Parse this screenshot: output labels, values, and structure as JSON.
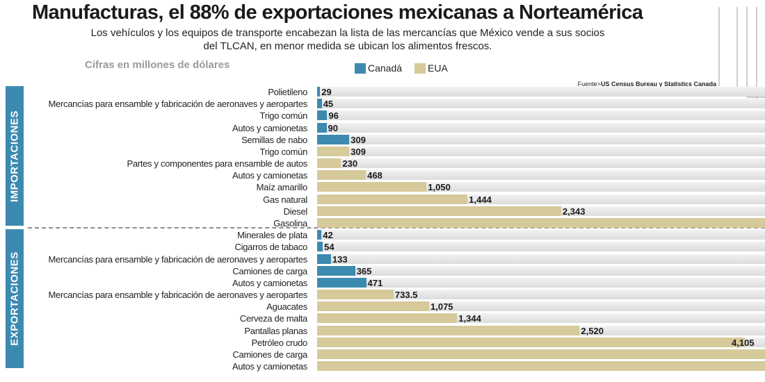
{
  "header": {
    "title": "Manufacturas, el 88% de exportaciones mexicanas a Norteamérica",
    "subtitle_line1": "Los vehículos y los equipos de transporte encabezan la lista de las mercancías que México vende a sus socios",
    "subtitle_line2": "del TLCAN, en menor medida se ubican los alimentos frescos.",
    "units": "Cifras en millones de dólares",
    "source_prefix": "Fuente>",
    "source_name": "US Census Bureau y Statistics Canada"
  },
  "colors": {
    "canada": "#3d8ab0",
    "eua": "#d6c99a",
    "track": "#e4e4e4",
    "section_tab": "#3d8ab0"
  },
  "sections": {
    "import_label": "IMPORTACIONES",
    "export_label": "EXPORTACIONES"
  },
  "chart_data": {
    "type": "bar",
    "orientation": "horizontal",
    "title": "Manufacturas, el 88% de exportaciones mexicanas a Norteamérica",
    "units": "Cifras en millones de dólares",
    "legend": [
      {
        "name": "Canadá",
        "color": "#3d8ab0"
      },
      {
        "name": "EUA",
        "color": "#d6c99a"
      }
    ],
    "legend_position": "top",
    "xlim": [
      0,
      4300
    ],
    "rows": [
      {
        "section": "import",
        "label": "Polietileno",
        "country": "Canadá",
        "value": 29,
        "value_text": "29"
      },
      {
        "section": "import",
        "label": "Mercancías para ensamble y fabricación de aeronaves y aeropartes",
        "country": "Canadá",
        "value": 45,
        "value_text": "45"
      },
      {
        "section": "import",
        "label": "Trigo común",
        "country": "Canadá",
        "value": 96,
        "value_text": "96"
      },
      {
        "section": "import",
        "label": "Autos y camionetas",
        "country": "Canadá",
        "value": 90,
        "value_text": "90"
      },
      {
        "section": "import",
        "label": "Semillas de nabo",
        "country": "Canadá",
        "value": 309,
        "value_text": "309"
      },
      {
        "section": "import",
        "label": "Trigo común",
        "country": "EUA",
        "value": 309,
        "value_text": "309"
      },
      {
        "section": "import",
        "label": "Partes y componentes para ensamble de autos",
        "country": "EUA",
        "value": 230,
        "value_text": "230"
      },
      {
        "section": "import",
        "label": "Autos y camionetas",
        "country": "EUA",
        "value": 468,
        "value_text": "468"
      },
      {
        "section": "import",
        "label": "Maíz amarillo",
        "country": "EUA",
        "value": 1050,
        "value_text": "1,050"
      },
      {
        "section": "import",
        "label": "Gas natural",
        "country": "EUA",
        "value": 1444,
        "value_text": "1,444"
      },
      {
        "section": "import",
        "label": "Diesel",
        "country": "EUA",
        "value": 2343,
        "value_text": "2,343"
      },
      {
        "section": "import",
        "label": "Gasolina",
        "country": "EUA",
        "value": 4300,
        "value_text": ""
      },
      {
        "section": "export",
        "label": "Minerales de plata",
        "country": "Canadá",
        "value": 42,
        "value_text": "42"
      },
      {
        "section": "export",
        "label": "Cigarros de tabaco",
        "country": "Canadá",
        "value": 54,
        "value_text": "54"
      },
      {
        "section": "export",
        "label": "Mercancías para ensamble y fabricación de aeronaves y aeropartes",
        "country": "Canadá",
        "value": 133,
        "value_text": "133"
      },
      {
        "section": "export",
        "label": "Camiones de carga",
        "country": "Canadá",
        "value": 365,
        "value_text": "365"
      },
      {
        "section": "export",
        "label": "Autos y camionetas",
        "country": "Canadá",
        "value": 471,
        "value_text": "471"
      },
      {
        "section": "export",
        "label": "Mercancías para ensamble y fabricación de aeronaves y aeropartes",
        "country": "EUA",
        "value": 733.5,
        "value_text": "733.5"
      },
      {
        "section": "export",
        "label": "Aguacates",
        "country": "EUA",
        "value": 1075,
        "value_text": "1,075"
      },
      {
        "section": "export",
        "label": "Cerveza de malta",
        "country": "EUA",
        "value": 1344,
        "value_text": "1,344"
      },
      {
        "section": "export",
        "label": "Pantallas planas",
        "country": "EUA",
        "value": 2520,
        "value_text": "2,520"
      },
      {
        "section": "export",
        "label": "Petróleo crudo",
        "country": "EUA",
        "value": 4105,
        "value_text": "4,105"
      },
      {
        "section": "export",
        "label": "Camiones de carga",
        "country": "EUA",
        "value": 4300,
        "value_text": ""
      },
      {
        "section": "export",
        "label": "Autos y camionetas",
        "country": "EUA",
        "value": 4300,
        "value_text": ""
      }
    ]
  }
}
